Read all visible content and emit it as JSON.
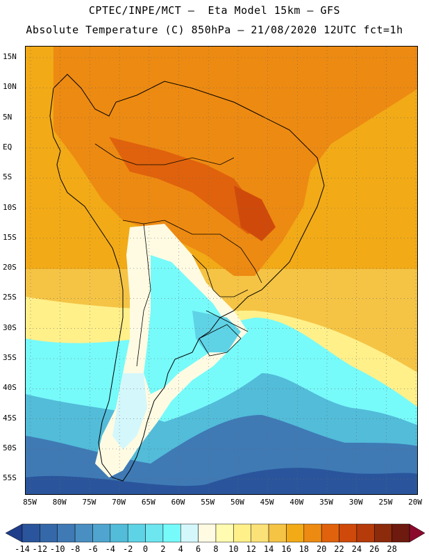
{
  "header": {
    "line1": "CPTEC/INPE/MCT –  Eta Model 15km – GFS",
    "line2": "Absolute Temperature (C) 850hPa – 21/08/2020 12UTC fct=1h"
  },
  "axes": {
    "lat_labels": [
      "15N",
      "10N",
      "5N",
      "EQ",
      "5S",
      "10S",
      "15S",
      "20S",
      "25S",
      "30S",
      "35S",
      "40S",
      "45S",
      "50S",
      "55S"
    ],
    "lon_labels": [
      "85W",
      "80W",
      "75W",
      "70W",
      "65W",
      "60W",
      "55W",
      "50W",
      "45W",
      "40W",
      "35W",
      "30W",
      "25W",
      "20W"
    ],
    "grid": "dotted"
  },
  "colorbar": {
    "labels": [
      "-14",
      "-12",
      "-10",
      "-8",
      "-6",
      "-4",
      "-2",
      "0",
      "2",
      "4",
      "6",
      "8",
      "10",
      "12",
      "14",
      "16",
      "18",
      "20",
      "22",
      "24",
      "26",
      "28"
    ],
    "colors": [
      "#1f3d8a",
      "#2a559c",
      "#3568a8",
      "#3f7ab5",
      "#4a8fc2",
      "#4fa5cf",
      "#52bcd9",
      "#5fd3e6",
      "#6de6f0",
      "#77fafa",
      "#d4f7fb",
      "#fffbe3",
      "#fffbb0",
      "#fff08a",
      "#fae178",
      "#f5c445",
      "#f2aa17",
      "#ed8a12",
      "#e0620c",
      "#cf4a0a",
      "#b63b0a",
      "#8c2a0c",
      "#6e1a0e",
      "#8b0a2c"
    ]
  },
  "palette": {
    "hot": "#e0620c",
    "warm": "#f2aa17",
    "mild": "#f5c445",
    "cool_yellow": "#fff08a",
    "cream": "#fffbe3",
    "pale_cyan": "#d4f7fb",
    "cyan": "#77fafa",
    "light_blue": "#5fd3e6",
    "mid_blue": "#4fa5cf",
    "blue": "#3f7ab5",
    "deep_blue": "#2a559c"
  }
}
